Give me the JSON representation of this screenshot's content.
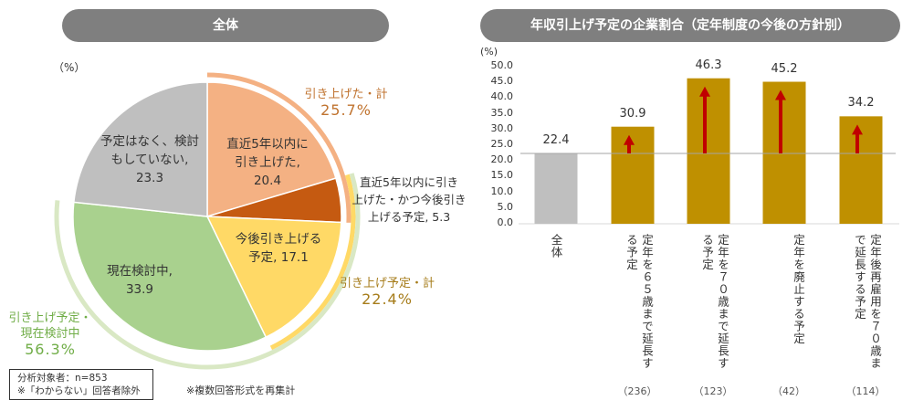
{
  "left_title": "全体",
  "right_title": "年収引上げ予定の企業割合（定年制度の今後の方針別）",
  "pie_unit": "（%）",
  "note_box": [
    "分析対象者：n=853",
    "※「わからない」回答者除外"
  ],
  "note": "※複数回答形式を再集計",
  "chart_data": [
    {
      "type": "pie",
      "title": "全体",
      "unit": "%",
      "slices": [
        {
          "label": "直近5年以内に引き上げた",
          "value": 20.4,
          "color": "#f4b183",
          "text": [
            "直近5年以内に",
            "引き上げた,",
            "20.4"
          ]
        },
        {
          "label": "直近5年以内に引き上げた・かつ今後引き上げる予定",
          "value": 5.3,
          "color": "#c55a11",
          "text": [
            "直近5年以内に引き",
            "上げた・かつ今後引き",
            "上げる予定, 5.3"
          ]
        },
        {
          "label": "今後引き上げる予定",
          "value": 17.1,
          "color": "#ffd966",
          "text": [
            "今後引き上げる",
            "予定, 17.1"
          ]
        },
        {
          "label": "現在検討中",
          "value": 33.9,
          "color": "#a9d18e",
          "text": [
            "現在検討中,",
            "33.9"
          ]
        },
        {
          "label": "予定はなく、検討もしていない",
          "value": 23.3,
          "color": "#bfbfbf",
          "text": [
            "予定はなく、検討",
            "もしていない,",
            "23.3"
          ]
        }
      ],
      "groups": [
        {
          "label": "引き上げた・計",
          "value": "25.7%",
          "color": "#f4b183",
          "text_color": "#c0732f",
          "range": [
            0,
            25.7
          ]
        },
        {
          "label": "引き上げ予定・計",
          "value": "22.4%",
          "color": "#ffd966",
          "text_color": "#a67c1a",
          "range": [
            20.4,
            42.8
          ]
        },
        {
          "label": "引き上げ予定・現在検討中",
          "label_lines": [
            "引き上げ予定・",
            "現在検討中"
          ],
          "value": "56.3%",
          "color": "#d9e8c4",
          "text_color": "#70ad47",
          "range": [
            20.4,
            76.7
          ]
        }
      ]
    },
    {
      "type": "bar",
      "title": "年収引上げ予定の企業割合（定年制度の今後の方針別）",
      "ylabel": "(%)",
      "ylim": [
        0,
        50
      ],
      "yticks": [
        "0.0",
        "5.0",
        "10.0",
        "15.0",
        "20.0",
        "25.0",
        "30.0",
        "35.0",
        "40.0",
        "45.0",
        "50.0"
      ],
      "categories": [
        "全体",
        "定年を６５歳まで延長する予定",
        "定年を７０歳まで延長する予定",
        "定年を廃止する予定",
        "定年後再雇用を７０歳まで延長する予定"
      ],
      "n": [
        "",
        "（236）",
        "（123）",
        "（42）",
        "（114）"
      ],
      "values": [
        22.4,
        30.9,
        46.3,
        45.2,
        34.2
      ],
      "colors": [
        "#bfbfbf",
        "#bf9000",
        "#bf9000",
        "#bf9000",
        "#bf9000"
      ],
      "reference_line": 22.4,
      "arrow_color": "#c00000"
    }
  ]
}
